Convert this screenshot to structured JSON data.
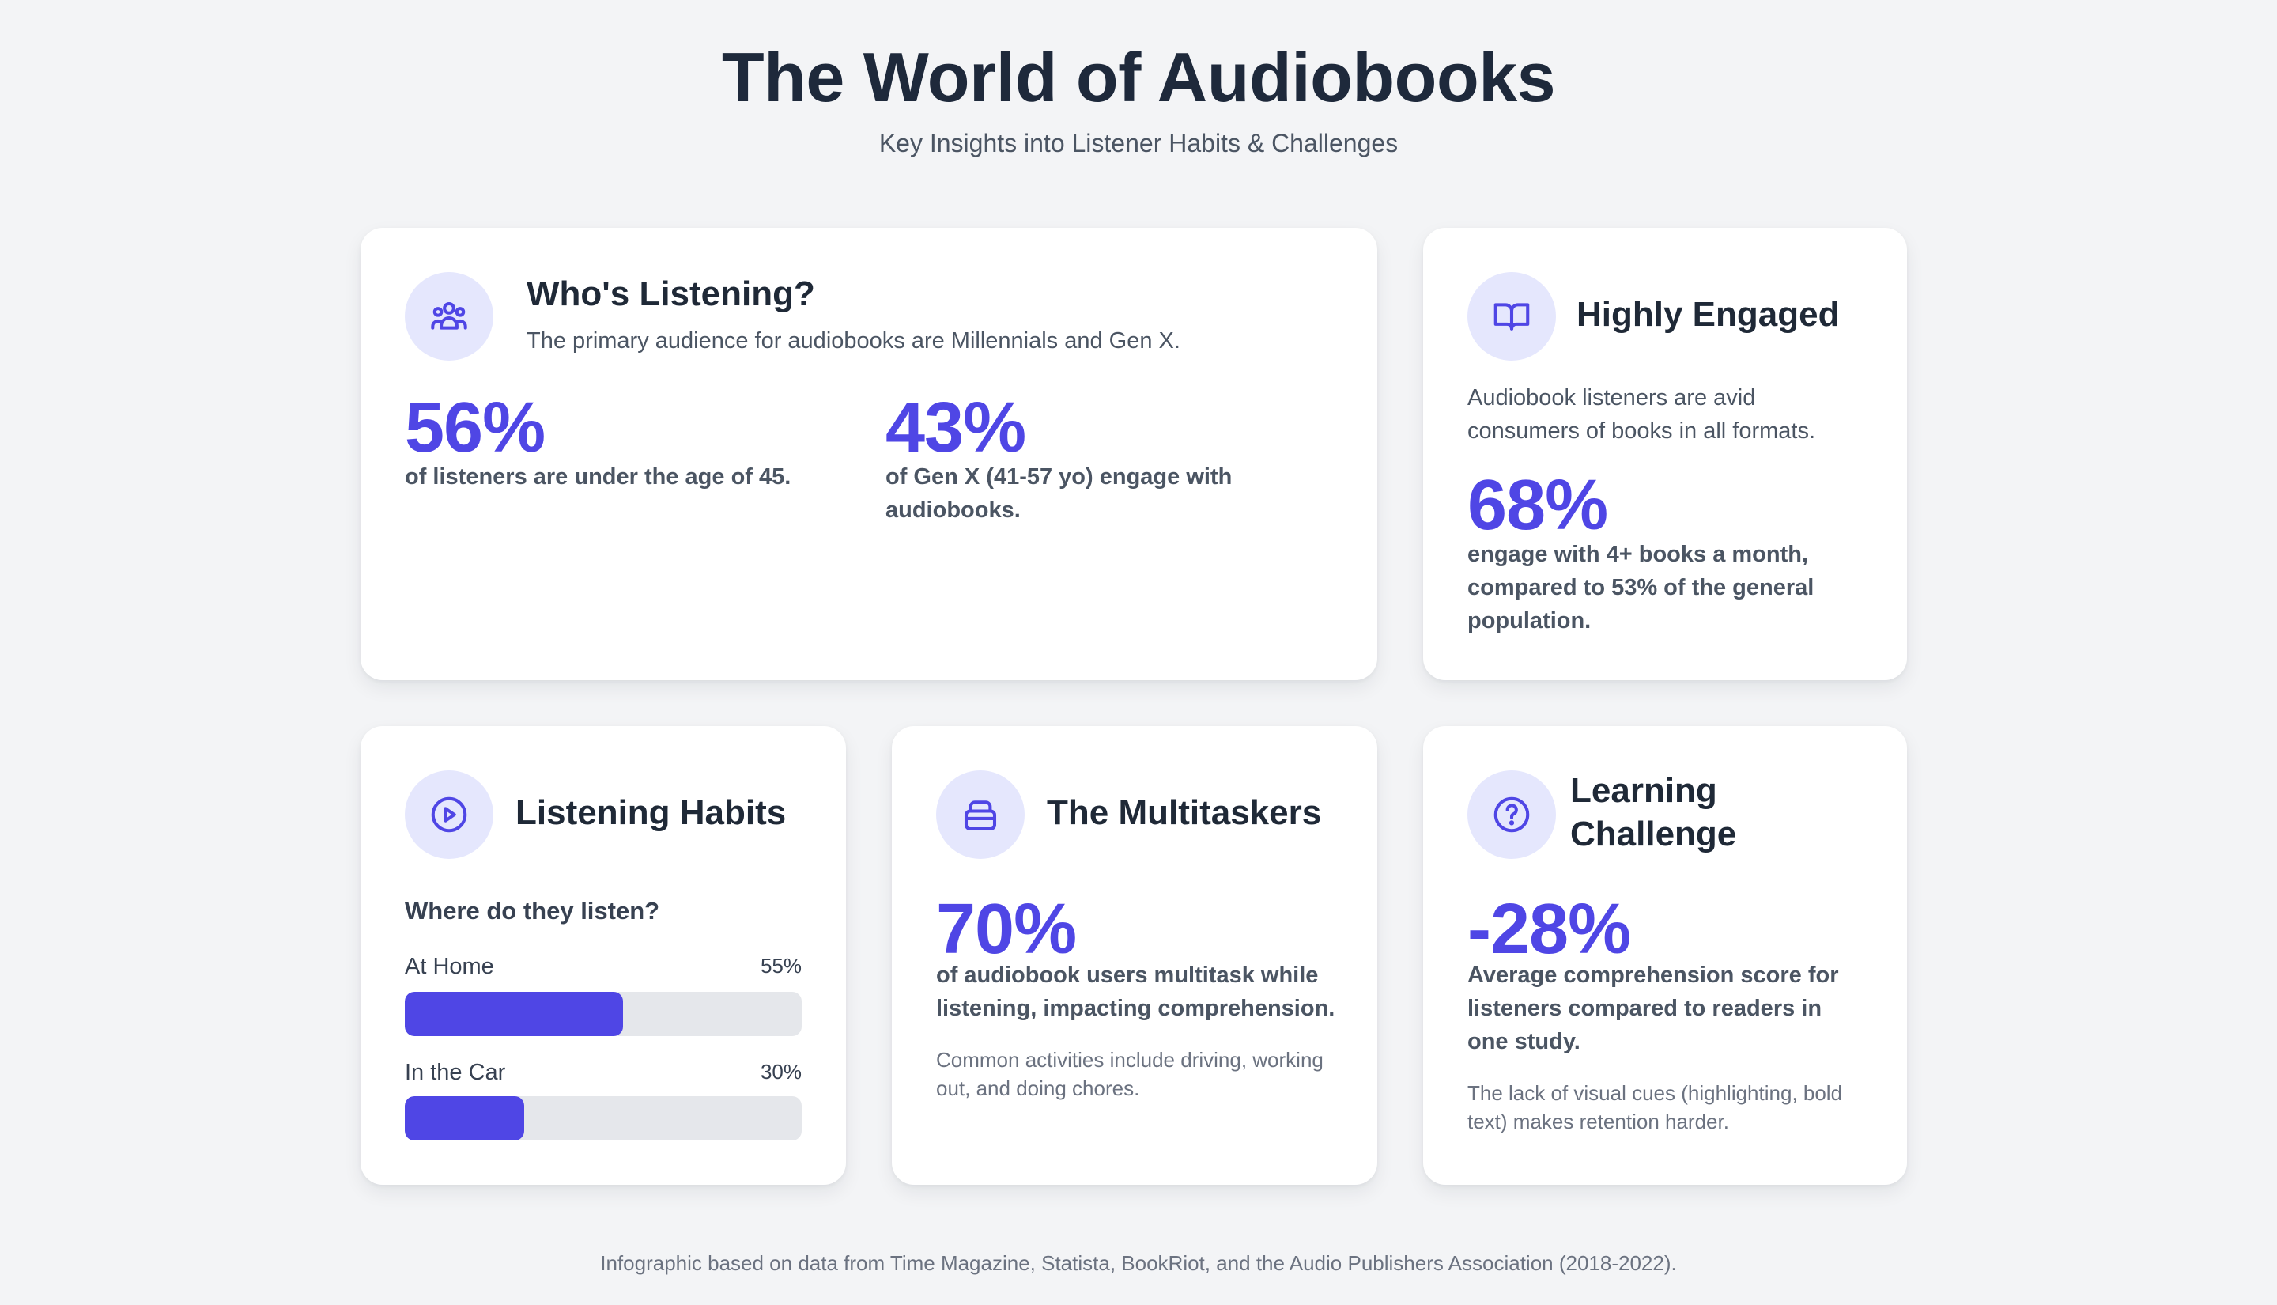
{
  "header": {
    "title": "The World of Audiobooks",
    "subtitle": "Key Insights into Listener Habits & Challenges"
  },
  "whos_listening": {
    "icon": "users-icon",
    "title": "Who's Listening?",
    "description": "The primary audience for audiobooks are Millennials and Gen X.",
    "stat1": {
      "value": "56%",
      "text": "of listeners are under the age of 45."
    },
    "stat2": {
      "value": "43%",
      "text": "of Gen X (41-57 yo) engage with audiobooks."
    }
  },
  "highly_engaged": {
    "icon": "book-open-icon",
    "title": "Highly Engaged",
    "description": "Audiobook listeners are avid consumers of books in all formats.",
    "stat": {
      "value": "68%",
      "text": "engage with 4+ books a month, compared to 53% of the general population."
    }
  },
  "listening_habits": {
    "icon": "play-circle-icon",
    "title": "Listening Habits",
    "question": "Where do they listen?",
    "bars": [
      {
        "label": "At Home",
        "percent_label": "55%",
        "value": 55
      },
      {
        "label": "In the Car",
        "percent_label": "30%",
        "value": 30
      }
    ]
  },
  "multitaskers": {
    "icon": "briefcase-icon",
    "title": "The Multitaskers",
    "stat": {
      "value": "70%",
      "text": "of audiobook users multitask while listening, impacting comprehension."
    },
    "note": "Common activities include driving, working out, and doing chores."
  },
  "learning_challenge": {
    "icon": "question-circle-icon",
    "title": "Learning Challenge",
    "stat": {
      "value": "-28%",
      "text": "Average comprehension score for listeners compared to readers in one study."
    },
    "note": "The lack of visual cues (highlighting, bold text) makes retention harder."
  },
  "footer": {
    "text": "Infographic based on data from Time Magazine, Statista, BookRiot, and the Audio Publishers Association (2018-2022)."
  },
  "colors": {
    "accent": "#4f46e5",
    "icon_bg": "#e5e7fd",
    "track": "#e5e7eb",
    "background": "#f3f4f6"
  }
}
